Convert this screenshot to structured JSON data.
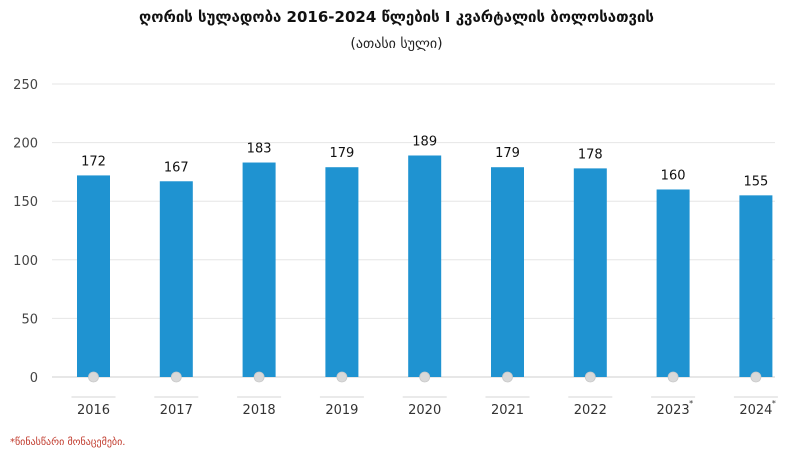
{
  "chart_data": {
    "type": "bar",
    "title": "ღორის სულადობა 2016-2024 წლების I კვარტალის ბოლოსათვის",
    "subtitle": "(ათასი სული)",
    "categories": [
      "2016",
      "2017",
      "2018",
      "2019",
      "2020",
      "2021",
      "2022",
      "2023",
      "2024"
    ],
    "category_marks": [
      "",
      "",
      "",
      "",
      "",
      "",
      "",
      "*",
      "*"
    ],
    "values": [
      172,
      167,
      183,
      179,
      189,
      179,
      178,
      160,
      155
    ],
    "ylim": [
      0,
      250
    ],
    "yticks": [
      0,
      50,
      100,
      150,
      200,
      250
    ],
    "grid": true,
    "colors": {
      "bar": "#1f93d1",
      "grid": "#e6e6e6",
      "marker": "#d9d9d9"
    }
  },
  "footnote": "*წინასწარი მონაცემები."
}
